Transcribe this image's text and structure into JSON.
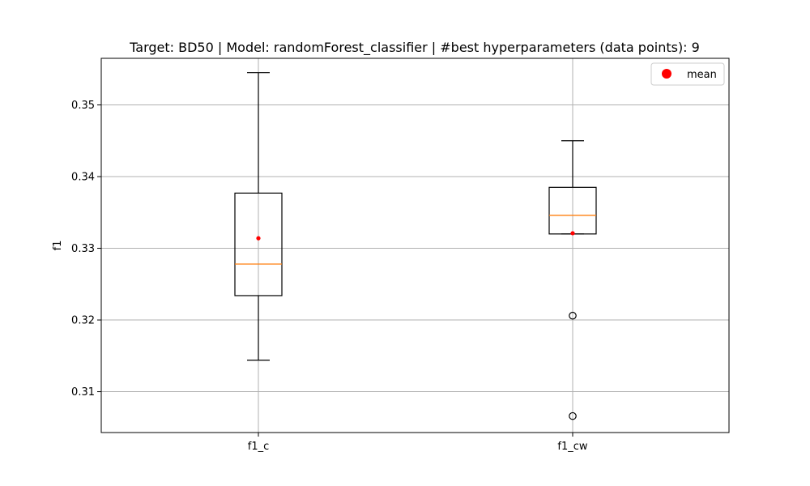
{
  "chart_data": {
    "type": "box",
    "title": "Target: BD50 | Model: randomForest_classifier | #best hyperparameters (data points): 9",
    "xlabel": "",
    "ylabel": "f1",
    "categories": [
      "f1_c",
      "f1_cw"
    ],
    "ylim": [
      0.3043,
      0.3565
    ],
    "yticks": [
      0.31,
      0.32,
      0.33,
      0.34,
      0.35
    ],
    "ytick_labels": [
      "0.31",
      "0.32",
      "0.33",
      "0.34",
      "0.35"
    ],
    "grid": true,
    "legend": {
      "position": "top-right",
      "entries": [
        "mean"
      ]
    },
    "series": [
      {
        "category": "f1_c",
        "whisker_low": 0.3144,
        "q1": 0.3234,
        "median": 0.3278,
        "q3": 0.3377,
        "whisker_high": 0.3545,
        "mean": 0.3314,
        "outliers": []
      },
      {
        "category": "f1_cw",
        "whisker_low": 0.332,
        "q1": 0.332,
        "median": 0.3346,
        "q3": 0.3385,
        "whisker_high": 0.345,
        "mean": 0.3321,
        "outliers": [
          0.3206,
          0.3066
        ]
      }
    ],
    "colors": {
      "box": "#000000",
      "median": "#ff7f0e",
      "mean": "#ff0000",
      "grid": "#b0b0b0"
    }
  }
}
